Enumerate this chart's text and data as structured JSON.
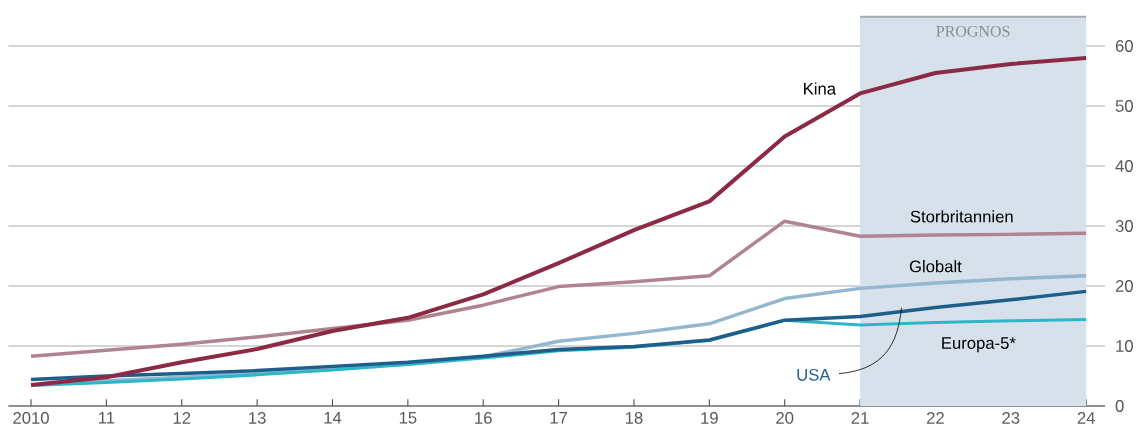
{
  "chart_data": {
    "type": "line",
    "x": [
      2010,
      2011,
      2012,
      2013,
      2014,
      2015,
      2016,
      2017,
      2018,
      2019,
      2020,
      2021,
      2022,
      2023,
      2024
    ],
    "series": [
      {
        "name": "Storbritannien",
        "color": "#b0848f",
        "values": [
          8.3,
          9.3,
          10.3,
          11.5,
          12.9,
          14.3,
          16.8,
          19.9,
          20.7,
          21.7,
          30.8,
          28.3,
          28.5,
          28.6,
          28.8
        ]
      },
      {
        "name": "Globalt",
        "color": "#93b7cf",
        "values": [
          3.5,
          4.2,
          4.8,
          5.5,
          6.3,
          7.0,
          8.2,
          10.8,
          12.1,
          13.7,
          17.9,
          19.6,
          20.5,
          21.2,
          21.7
        ]
      },
      {
        "name": "Europa-5*",
        "color": "#2db6c9",
        "values": [
          3.4,
          3.9,
          4.5,
          5.2,
          6.0,
          6.9,
          8.0,
          9.2,
          9.8,
          10.9,
          14.3,
          13.5,
          13.9,
          14.2,
          14.4
        ]
      },
      {
        "name": "USA",
        "color": "#1d5e8a",
        "values": [
          4.4,
          5.0,
          5.4,
          5.9,
          6.6,
          7.3,
          8.3,
          9.4,
          9.9,
          11.0,
          14.3,
          14.9,
          16.4,
          17.7,
          19.1
        ]
      },
      {
        "name": "Kina",
        "color": "#8c2a45",
        "values": [
          3.5,
          4.8,
          7.3,
          9.5,
          12.5,
          14.7,
          18.6,
          23.8,
          29.3,
          34.1,
          44.9,
          52.1,
          55.5,
          57.0,
          58.0
        ]
      }
    ],
    "xlim": [
      2009.7,
      2024.25
    ],
    "ylim": [
      0,
      60
    ],
    "xticks": [
      {
        "value": 2010,
        "label": "2010"
      },
      {
        "value": 2011,
        "label": "11"
      },
      {
        "value": 2012,
        "label": "12"
      },
      {
        "value": 2013,
        "label": "13"
      },
      {
        "value": 2014,
        "label": "14"
      },
      {
        "value": 2015,
        "label": "15"
      },
      {
        "value": 2016,
        "label": "16"
      },
      {
        "value": 2017,
        "label": "17"
      },
      {
        "value": 2018,
        "label": "18"
      },
      {
        "value": 2019,
        "label": "19"
      },
      {
        "value": 2020,
        "label": "20"
      },
      {
        "value": 2021,
        "label": "21"
      },
      {
        "value": 2022,
        "label": "22"
      },
      {
        "value": 2023,
        "label": "23"
      },
      {
        "value": 2024,
        "label": "24"
      }
    ],
    "yticks": [
      0,
      10,
      20,
      30,
      40,
      50,
      60
    ],
    "bands": [
      {
        "axis": "x",
        "from": 2021,
        "to": 2024,
        "label": "PROGNOS",
        "color": "#d6e1eb"
      }
    ],
    "grid": "y"
  }
}
